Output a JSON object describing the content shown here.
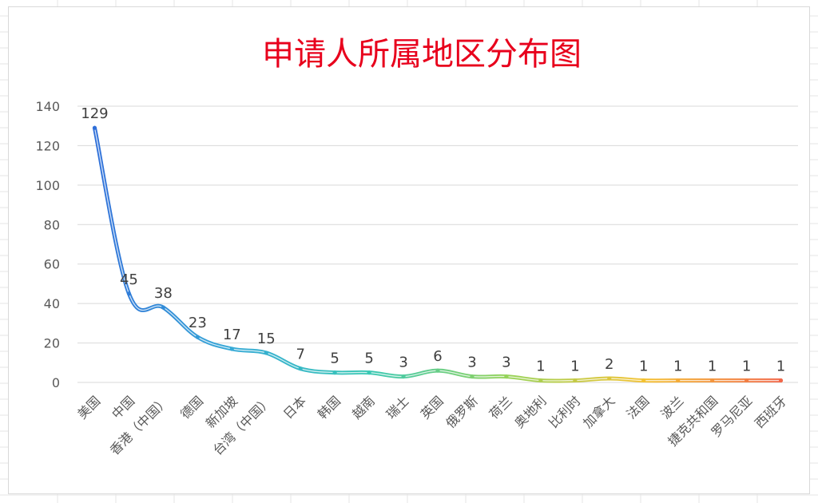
{
  "chart_data": {
    "type": "line",
    "title": "申请人所属地区分布图",
    "categories": [
      "美国",
      "中国",
      "香港（中国）",
      "德国",
      "新加坡",
      "台湾（中国）",
      "日本",
      "韩国",
      "越南",
      "瑞士",
      "英国",
      "俄罗斯",
      "荷兰",
      "奥地利",
      "比利时",
      "加拿大",
      "法国",
      "波兰",
      "捷克共和国",
      "罗马尼亚",
      "西班牙"
    ],
    "values": [
      129,
      45,
      38,
      23,
      17,
      15,
      7,
      5,
      5,
      3,
      6,
      3,
      3,
      1,
      1,
      2,
      1,
      1,
      1,
      1,
      1
    ],
    "ylim": [
      0,
      140
    ],
    "yticks": [
      0,
      20,
      40,
      60,
      80,
      100,
      120,
      140
    ],
    "grid": true,
    "legend": "none",
    "smooth": true,
    "colors": {
      "title": "#e8001c",
      "axis_text": "#595959",
      "grid": "#d9d9d9",
      "line_gradient": [
        "#2f6fd9",
        "#35a9d6",
        "#39c8b4",
        "#95d35a",
        "#f4c232",
        "#f2684a"
      ]
    }
  }
}
